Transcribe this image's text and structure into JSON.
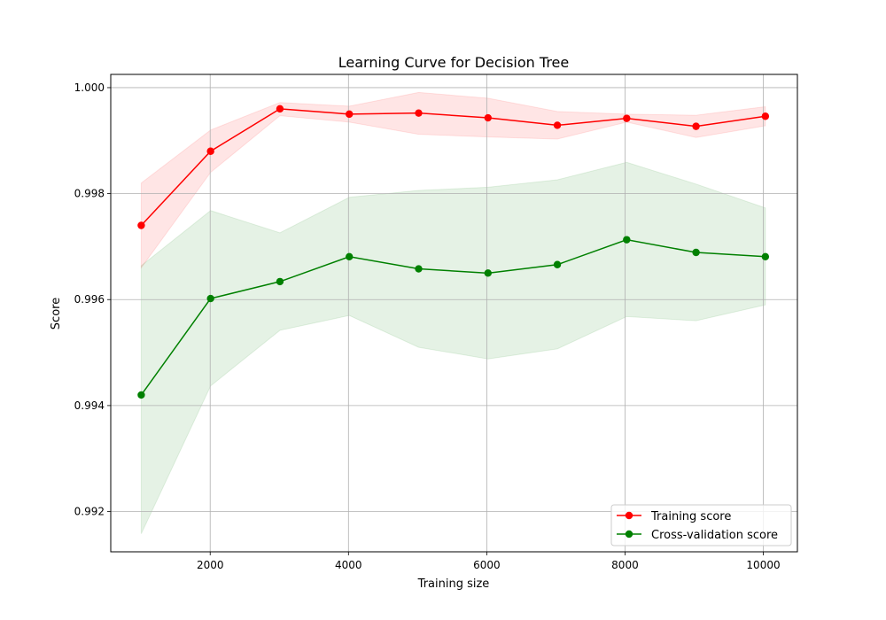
{
  "chart_data": {
    "type": "line",
    "title": "Learning Curve for Decision Tree",
    "xlabel": "Training size",
    "ylabel": "Score",
    "xlim": [
      562,
      10493
    ],
    "ylim": [
      0.99124,
      1.00025
    ],
    "xticks": [
      2000,
      4000,
      6000,
      8000,
      10000
    ],
    "xtick_labels": [
      "2000",
      "4000",
      "6000",
      "8000",
      "10000"
    ],
    "yticks": [
      0.992,
      0.994,
      0.996,
      0.998,
      1.0
    ],
    "ytick_labels": [
      "0.992",
      "0.994",
      "0.996",
      "0.998",
      "1.000"
    ],
    "grid": true,
    "legend_position": "lower-right",
    "x": [
      1003,
      2006,
      3009,
      4012,
      5015,
      6018,
      7021,
      8024,
      9027,
      10030
    ],
    "series": [
      {
        "name": "Training score",
        "color": "#ff0000",
        "band_color": "#ff0000",
        "values": [
          0.9974,
          0.9988,
          0.9996,
          0.9995,
          0.99952,
          0.99943,
          0.99929,
          0.99942,
          0.99927,
          0.99946
        ],
        "lower": [
          0.9966,
          0.9984,
          0.99947,
          0.99935,
          0.99912,
          0.99907,
          0.99903,
          0.99935,
          0.99906,
          0.99928
        ],
        "upper": [
          0.9982,
          0.9992,
          0.99972,
          0.99965,
          0.99991,
          0.9998,
          0.99955,
          0.9995,
          0.99948,
          0.99964
        ]
      },
      {
        "name": "Cross-validation score",
        "color": "#008000",
        "band_color": "#008000",
        "values": [
          0.9942,
          0.99602,
          0.99634,
          0.99681,
          0.99658,
          0.9965,
          0.99666,
          0.99713,
          0.99689,
          0.99681
        ],
        "lower": [
          0.99158,
          0.99437,
          0.99542,
          0.9957,
          0.9951,
          0.99488,
          0.99507,
          0.99568,
          0.9956,
          0.9959
        ],
        "upper": [
          0.99664,
          0.99768,
          0.99726,
          0.99793,
          0.99806,
          0.99812,
          0.99826,
          0.99859,
          0.99818,
          0.99773
        ]
      }
    ]
  }
}
